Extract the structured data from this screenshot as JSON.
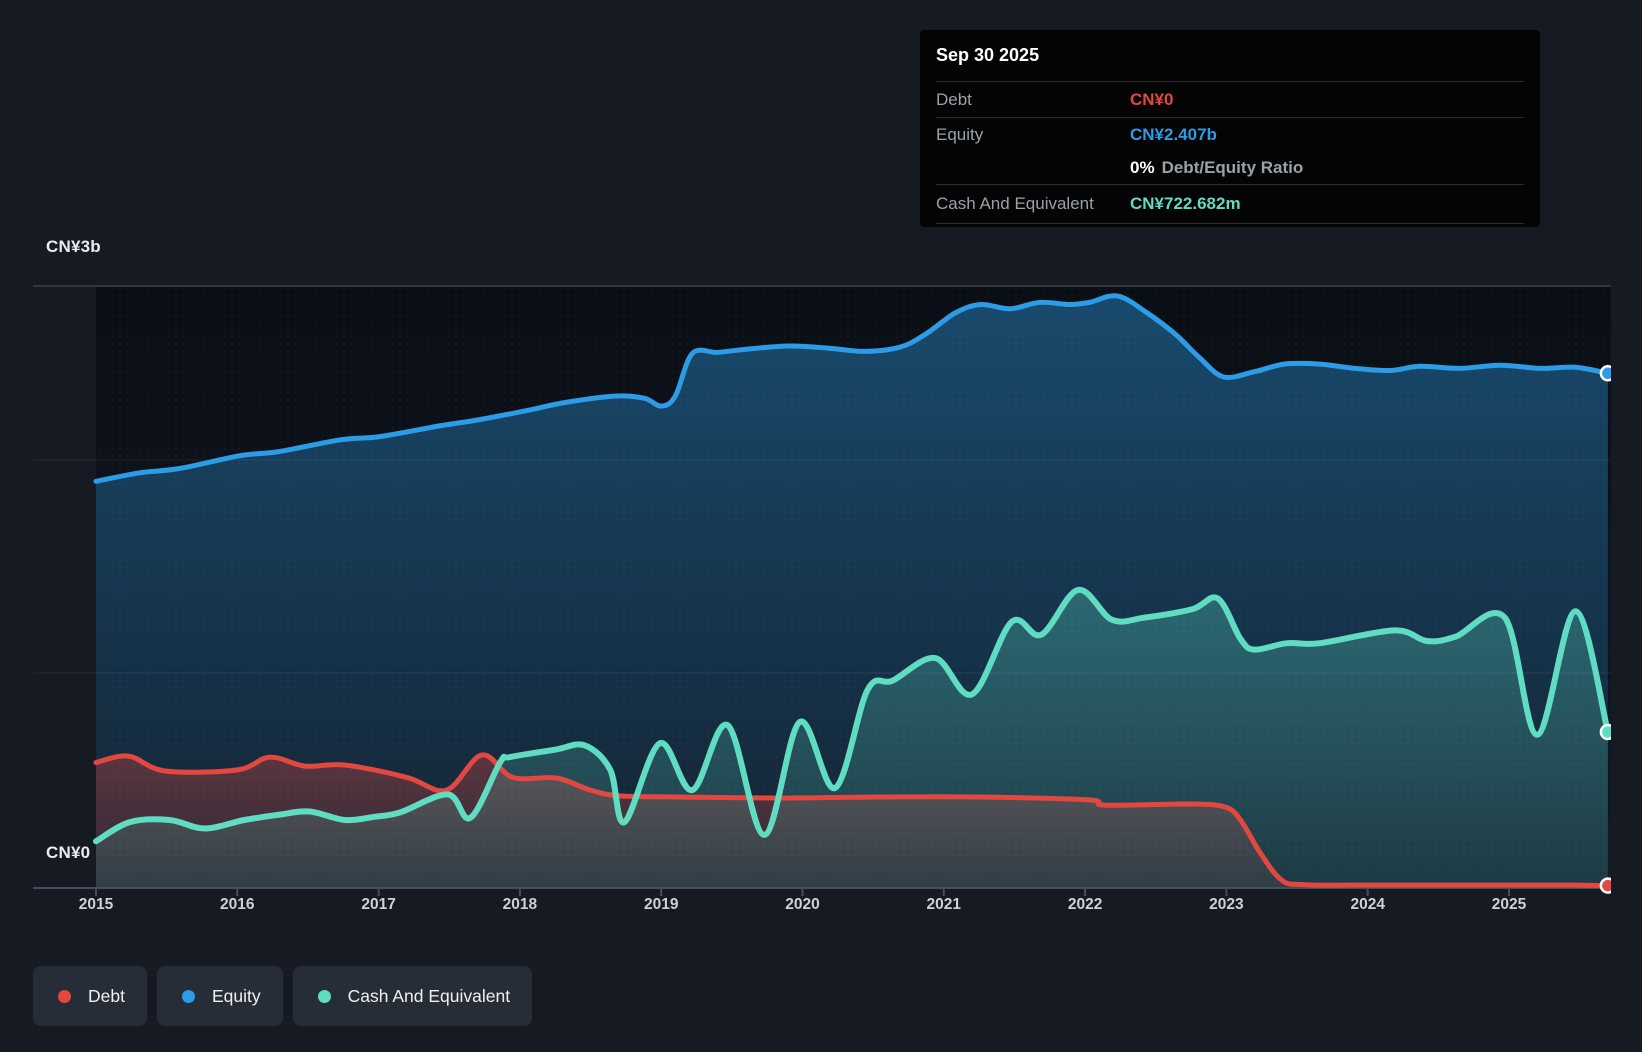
{
  "tooltip": {
    "date": "Sep 30 2025",
    "debt_label": "Debt",
    "debt_value": "CN¥0",
    "equity_label": "Equity",
    "equity_value": "CN¥2.407b",
    "ratio_value": "0%",
    "ratio_label": "Debt/Equity Ratio",
    "cash_label": "Cash And Equivalent",
    "cash_value": "CN¥722.682m"
  },
  "legend": {
    "items": [
      {
        "label": "Debt"
      },
      {
        "label": "Equity"
      },
      {
        "label": "Cash And Equivalent"
      }
    ]
  },
  "colors": {
    "background": "#151a23",
    "plot_top": "#0a0e15",
    "plot_bottom": "#131a25",
    "debt": "#e2483f",
    "equity": "#2b9ce5",
    "cash": "#5fdcc2",
    "axis_line": "#454e5a",
    "gridline": "rgba(255,255,255,0.07)",
    "top_gridline": "#39424e",
    "tick_label": "#ccd2d9",
    "axis_label": "#e9ecef",
    "tooltip_bg": "#040404",
    "tooltip_label": "#99a1a9",
    "tooltip_separator": "#2c2c2c",
    "legend_bg": "#272d37",
    "legend_text": "#eef0f2"
  },
  "chart_data": {
    "type": "area",
    "title": "",
    "unit": "CN¥ billions",
    "x_ticks": [
      2015,
      2016,
      2017,
      2018,
      2019,
      2020,
      2021,
      2022,
      2023,
      2024,
      2025
    ],
    "x_range": [
      2014.55,
      2025.72
    ],
    "y_axis": {
      "top_label": "CN¥3b",
      "bottom_label": "CN¥0",
      "min": 0,
      "max": 3,
      "gridlines_b": [
        2,
        1
      ]
    },
    "legend_position": "bottom-left",
    "end_markers": true,
    "series": [
      {
        "name": "Debt",
        "color": "#e2483f",
        "end_value": "CN¥0",
        "points": [
          [
            2015.0,
            0.58
          ],
          [
            2015.23,
            0.61
          ],
          [
            2015.49,
            0.54
          ],
          [
            2016.0,
            0.545
          ],
          [
            2016.23,
            0.605
          ],
          [
            2016.48,
            0.563
          ],
          [
            2016.76,
            0.568
          ],
          [
            2017.2,
            0.51
          ],
          [
            2017.48,
            0.45
          ],
          [
            2017.73,
            0.615
          ],
          [
            2017.95,
            0.51
          ],
          [
            2018.26,
            0.507
          ],
          [
            2018.5,
            0.45
          ],
          [
            2018.71,
            0.423
          ],
          [
            2019.13,
            0.418
          ],
          [
            2019.84,
            0.413
          ],
          [
            2020.55,
            0.418
          ],
          [
            2021.26,
            0.418
          ],
          [
            2022.03,
            0.404
          ],
          [
            2022.14,
            0.38
          ],
          [
            2022.74,
            0.385
          ],
          [
            2022.99,
            0.371
          ],
          [
            2023.1,
            0.31
          ],
          [
            2023.24,
            0.155
          ],
          [
            2023.39,
            0.028
          ],
          [
            2023.55,
            0.006
          ],
          [
            2024.0,
            0.004
          ],
          [
            2024.5,
            0.004
          ],
          [
            2025.0,
            0.004
          ],
          [
            2025.4,
            0.004
          ],
          [
            2025.7,
            0.002
          ]
        ]
      },
      {
        "name": "Equity",
        "color": "#2b9ce5",
        "end_value": "CN¥2.407b",
        "points": [
          [
            2015.0,
            1.9
          ],
          [
            2015.31,
            1.94
          ],
          [
            2015.59,
            1.96
          ],
          [
            2016.02,
            2.02
          ],
          [
            2016.3,
            2.04
          ],
          [
            2016.73,
            2.095
          ],
          [
            2017.01,
            2.11
          ],
          [
            2017.43,
            2.16
          ],
          [
            2017.72,
            2.19
          ],
          [
            2018.07,
            2.235
          ],
          [
            2018.32,
            2.27
          ],
          [
            2018.67,
            2.3
          ],
          [
            2018.88,
            2.29
          ],
          [
            2019.0,
            2.253
          ],
          [
            2019.1,
            2.3
          ],
          [
            2019.22,
            2.5
          ],
          [
            2019.4,
            2.505
          ],
          [
            2019.6,
            2.52
          ],
          [
            2019.91,
            2.535
          ],
          [
            2020.19,
            2.525
          ],
          [
            2020.44,
            2.51
          ],
          [
            2020.69,
            2.53
          ],
          [
            2020.87,
            2.59
          ],
          [
            2021.08,
            2.69
          ],
          [
            2021.26,
            2.73
          ],
          [
            2021.47,
            2.71
          ],
          [
            2021.68,
            2.74
          ],
          [
            2021.89,
            2.73
          ],
          [
            2022.03,
            2.74
          ],
          [
            2022.23,
            2.77
          ],
          [
            2022.44,
            2.69
          ],
          [
            2022.64,
            2.59
          ],
          [
            2022.81,
            2.48
          ],
          [
            2022.98,
            2.39
          ],
          [
            2023.2,
            2.415
          ],
          [
            2023.41,
            2.45
          ],
          [
            2023.66,
            2.45
          ],
          [
            2023.91,
            2.43
          ],
          [
            2024.16,
            2.42
          ],
          [
            2024.37,
            2.44
          ],
          [
            2024.65,
            2.43
          ],
          [
            2024.94,
            2.445
          ],
          [
            2025.22,
            2.43
          ],
          [
            2025.47,
            2.435
          ],
          [
            2025.7,
            2.407
          ]
        ]
      },
      {
        "name": "Cash And Equivalent",
        "color": "#5fdcc2",
        "end_value": "CN¥722.682m",
        "points": [
          [
            2015.0,
            0.21
          ],
          [
            2015.24,
            0.3
          ],
          [
            2015.52,
            0.31
          ],
          [
            2015.77,
            0.27
          ],
          [
            2016.05,
            0.31
          ],
          [
            2016.3,
            0.335
          ],
          [
            2016.51,
            0.35
          ],
          [
            2016.76,
            0.31
          ],
          [
            2016.97,
            0.325
          ],
          [
            2017.15,
            0.345
          ],
          [
            2017.49,
            0.43
          ],
          [
            2017.65,
            0.32
          ],
          [
            2017.86,
            0.58
          ],
          [
            2017.93,
            0.605
          ],
          [
            2018.25,
            0.64
          ],
          [
            2018.46,
            0.66
          ],
          [
            2018.64,
            0.545
          ],
          [
            2018.74,
            0.3
          ],
          [
            2018.99,
            0.67
          ],
          [
            2019.22,
            0.45
          ],
          [
            2019.47,
            0.755
          ],
          [
            2019.73,
            0.24
          ],
          [
            2019.98,
            0.77
          ],
          [
            2020.23,
            0.46
          ],
          [
            2020.46,
            0.92
          ],
          [
            2020.64,
            0.965
          ],
          [
            2020.94,
            1.07
          ],
          [
            2021.2,
            0.9
          ],
          [
            2021.48,
            1.24
          ],
          [
            2021.69,
            1.18
          ],
          [
            2021.95,
            1.39
          ],
          [
            2022.19,
            1.25
          ],
          [
            2022.42,
            1.26
          ],
          [
            2022.76,
            1.3
          ],
          [
            2022.94,
            1.35
          ],
          [
            2023.1,
            1.16
          ],
          [
            2023.2,
            1.11
          ],
          [
            2023.43,
            1.14
          ],
          [
            2023.66,
            1.14
          ],
          [
            2024.19,
            1.2
          ],
          [
            2024.42,
            1.15
          ],
          [
            2024.62,
            1.17
          ],
          [
            2024.97,
            1.26
          ],
          [
            2025.2,
            0.71
          ],
          [
            2025.47,
            1.29
          ],
          [
            2025.7,
            0.723
          ]
        ]
      }
    ]
  }
}
